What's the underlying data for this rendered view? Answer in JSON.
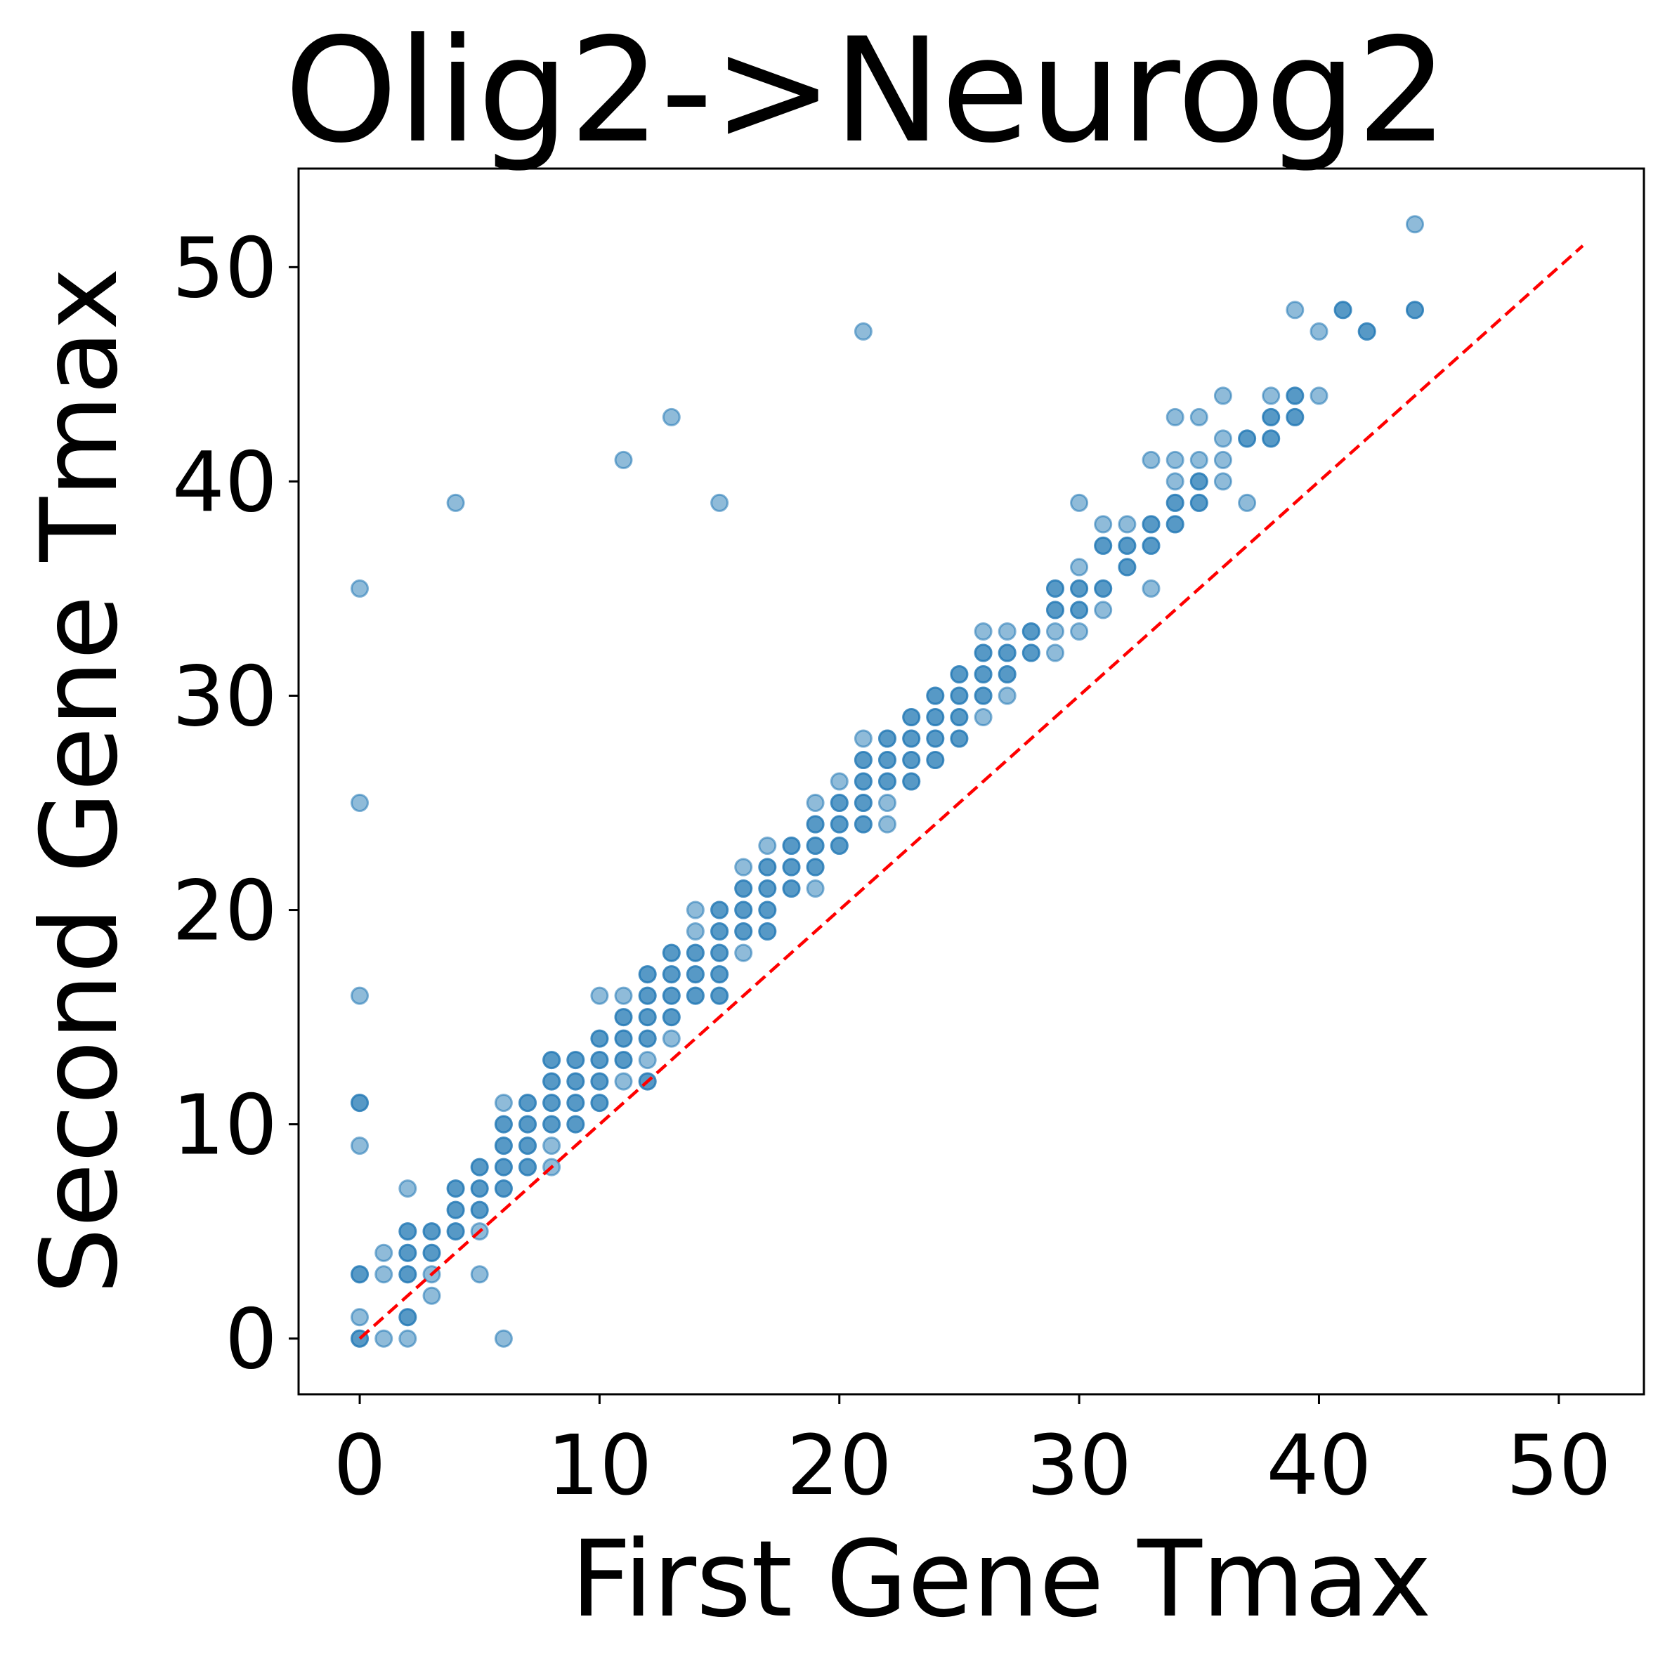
{
  "chart_data": {
    "type": "scatter",
    "title": "Olig2->Neurog2",
    "xlabel": "First Gene Tmax",
    "ylabel": "Second Gene Tmax",
    "xlim": [
      -2.55,
      53.55
    ],
    "ylim": [
      -2.6,
      54.6
    ],
    "xticks": [
      0,
      10,
      20,
      30,
      40,
      50
    ],
    "yticks": [
      0,
      10,
      20,
      30,
      40,
      50
    ],
    "grid": false,
    "legend": "none",
    "point_color": "#1f77b4",
    "point_alpha": 0.5,
    "reference_line": {
      "x": [
        0,
        51
      ],
      "y": [
        0,
        51
      ],
      "color": "#ff0000",
      "style": "dashed"
    },
    "points": [
      [
        0,
        0
      ],
      [
        0,
        0
      ],
      [
        0,
        1
      ],
      [
        0,
        3
      ],
      [
        0,
        3
      ],
      [
        0,
        9
      ],
      [
        0,
        11
      ],
      [
        0,
        11
      ],
      [
        0,
        16
      ],
      [
        0,
        25
      ],
      [
        0,
        35
      ],
      [
        1,
        0
      ],
      [
        1,
        3
      ],
      [
        1,
        4
      ],
      [
        2,
        0
      ],
      [
        2,
        1
      ],
      [
        2,
        1
      ],
      [
        2,
        3
      ],
      [
        2,
        3
      ],
      [
        2,
        4
      ],
      [
        2,
        4
      ],
      [
        2,
        5
      ],
      [
        2,
        5
      ],
      [
        2,
        7
      ],
      [
        3,
        2
      ],
      [
        3,
        3
      ],
      [
        3,
        4
      ],
      [
        3,
        4
      ],
      [
        3,
        5
      ],
      [
        3,
        5
      ],
      [
        4,
        5
      ],
      [
        4,
        5
      ],
      [
        4,
        6
      ],
      [
        4,
        6
      ],
      [
        4,
        7
      ],
      [
        4,
        7
      ],
      [
        4,
        39
      ],
      [
        5,
        3
      ],
      [
        5,
        5
      ],
      [
        5,
        6
      ],
      [
        5,
        6
      ],
      [
        5,
        7
      ],
      [
        5,
        7
      ],
      [
        5,
        8
      ],
      [
        5,
        8
      ],
      [
        6,
        0
      ],
      [
        6,
        7
      ],
      [
        6,
        7
      ],
      [
        6,
        8
      ],
      [
        6,
        8
      ],
      [
        6,
        9
      ],
      [
        6,
        9
      ],
      [
        6,
        10
      ],
      [
        6,
        10
      ],
      [
        6,
        11
      ],
      [
        7,
        8
      ],
      [
        7,
        8
      ],
      [
        7,
        9
      ],
      [
        7,
        9
      ],
      [
        7,
        10
      ],
      [
        7,
        10
      ],
      [
        7,
        11
      ],
      [
        7,
        11
      ],
      [
        8,
        8
      ],
      [
        8,
        9
      ],
      [
        8,
        10
      ],
      [
        8,
        10
      ],
      [
        8,
        11
      ],
      [
        8,
        11
      ],
      [
        8,
        12
      ],
      [
        8,
        12
      ],
      [
        8,
        13
      ],
      [
        8,
        13
      ],
      [
        9,
        10
      ],
      [
        9,
        10
      ],
      [
        9,
        11
      ],
      [
        9,
        11
      ],
      [
        9,
        12
      ],
      [
        9,
        12
      ],
      [
        9,
        13
      ],
      [
        9,
        13
      ],
      [
        10,
        11
      ],
      [
        10,
        11
      ],
      [
        10,
        12
      ],
      [
        10,
        12
      ],
      [
        10,
        13
      ],
      [
        10,
        13
      ],
      [
        10,
        14
      ],
      [
        10,
        14
      ],
      [
        10,
        16
      ],
      [
        11,
        12
      ],
      [
        11,
        13
      ],
      [
        11,
        13
      ],
      [
        11,
        14
      ],
      [
        11,
        14
      ],
      [
        11,
        15
      ],
      [
        11,
        15
      ],
      [
        11,
        16
      ],
      [
        11,
        41
      ],
      [
        12,
        12
      ],
      [
        12,
        12
      ],
      [
        12,
        13
      ],
      [
        12,
        14
      ],
      [
        12,
        14
      ],
      [
        12,
        15
      ],
      [
        12,
        15
      ],
      [
        12,
        16
      ],
      [
        12,
        16
      ],
      [
        12,
        17
      ],
      [
        12,
        17
      ],
      [
        13,
        14
      ],
      [
        13,
        15
      ],
      [
        13,
        15
      ],
      [
        13,
        16
      ],
      [
        13,
        16
      ],
      [
        13,
        17
      ],
      [
        13,
        17
      ],
      [
        13,
        18
      ],
      [
        13,
        18
      ],
      [
        13,
        43
      ],
      [
        14,
        16
      ],
      [
        14,
        16
      ],
      [
        14,
        17
      ],
      [
        14,
        17
      ],
      [
        14,
        18
      ],
      [
        14,
        18
      ],
      [
        14,
        19
      ],
      [
        14,
        20
      ],
      [
        15,
        16
      ],
      [
        15,
        16
      ],
      [
        15,
        17
      ],
      [
        15,
        17
      ],
      [
        15,
        18
      ],
      [
        15,
        18
      ],
      [
        15,
        19
      ],
      [
        15,
        19
      ],
      [
        15,
        20
      ],
      [
        15,
        20
      ],
      [
        15,
        39
      ],
      [
        16,
        18
      ],
      [
        16,
        19
      ],
      [
        16,
        19
      ],
      [
        16,
        20
      ],
      [
        16,
        20
      ],
      [
        16,
        21
      ],
      [
        16,
        21
      ],
      [
        16,
        22
      ],
      [
        17,
        19
      ],
      [
        17,
        19
      ],
      [
        17,
        20
      ],
      [
        17,
        20
      ],
      [
        17,
        21
      ],
      [
        17,
        21
      ],
      [
        17,
        22
      ],
      [
        17,
        22
      ],
      [
        17,
        23
      ],
      [
        18,
        21
      ],
      [
        18,
        21
      ],
      [
        18,
        22
      ],
      [
        18,
        22
      ],
      [
        18,
        23
      ],
      [
        18,
        23
      ],
      [
        19,
        21
      ],
      [
        19,
        22
      ],
      [
        19,
        22
      ],
      [
        19,
        23
      ],
      [
        19,
        23
      ],
      [
        19,
        24
      ],
      [
        19,
        24
      ],
      [
        19,
        25
      ],
      [
        20,
        23
      ],
      [
        20,
        23
      ],
      [
        20,
        24
      ],
      [
        20,
        24
      ],
      [
        20,
        25
      ],
      [
        20,
        25
      ],
      [
        20,
        26
      ],
      [
        21,
        24
      ],
      [
        21,
        24
      ],
      [
        21,
        25
      ],
      [
        21,
        25
      ],
      [
        21,
        26
      ],
      [
        21,
        26
      ],
      [
        21,
        27
      ],
      [
        21,
        27
      ],
      [
        21,
        28
      ],
      [
        21,
        47
      ],
      [
        22,
        24
      ],
      [
        22,
        25
      ],
      [
        22,
        26
      ],
      [
        22,
        26
      ],
      [
        22,
        27
      ],
      [
        22,
        27
      ],
      [
        22,
        28
      ],
      [
        22,
        28
      ],
      [
        23,
        26
      ],
      [
        23,
        26
      ],
      [
        23,
        27
      ],
      [
        23,
        27
      ],
      [
        23,
        28
      ],
      [
        23,
        28
      ],
      [
        23,
        29
      ],
      [
        23,
        29
      ],
      [
        24,
        27
      ],
      [
        24,
        27
      ],
      [
        24,
        28
      ],
      [
        24,
        28
      ],
      [
        24,
        29
      ],
      [
        24,
        29
      ],
      [
        24,
        30
      ],
      [
        24,
        30
      ],
      [
        25,
        28
      ],
      [
        25,
        28
      ],
      [
        25,
        29
      ],
      [
        25,
        29
      ],
      [
        25,
        30
      ],
      [
        25,
        30
      ],
      [
        25,
        31
      ],
      [
        25,
        31
      ],
      [
        26,
        29
      ],
      [
        26,
        30
      ],
      [
        26,
        30
      ],
      [
        26,
        31
      ],
      [
        26,
        31
      ],
      [
        26,
        32
      ],
      [
        26,
        32
      ],
      [
        26,
        33
      ],
      [
        27,
        30
      ],
      [
        27,
        31
      ],
      [
        27,
        31
      ],
      [
        27,
        32
      ],
      [
        27,
        32
      ],
      [
        27,
        33
      ],
      [
        28,
        32
      ],
      [
        28,
        32
      ],
      [
        28,
        33
      ],
      [
        28,
        33
      ],
      [
        29,
        32
      ],
      [
        29,
        33
      ],
      [
        29,
        34
      ],
      [
        29,
        34
      ],
      [
        29,
        35
      ],
      [
        29,
        35
      ],
      [
        30,
        33
      ],
      [
        30,
        34
      ],
      [
        30,
        34
      ],
      [
        30,
        35
      ],
      [
        30,
        35
      ],
      [
        30,
        36
      ],
      [
        30,
        39
      ],
      [
        31,
        34
      ],
      [
        31,
        35
      ],
      [
        31,
        35
      ],
      [
        31,
        37
      ],
      [
        31,
        37
      ],
      [
        31,
        38
      ],
      [
        32,
        36
      ],
      [
        32,
        36
      ],
      [
        32,
        37
      ],
      [
        32,
        37
      ],
      [
        32,
        38
      ],
      [
        33,
        35
      ],
      [
        33,
        37
      ],
      [
        33,
        37
      ],
      [
        33,
        38
      ],
      [
        33,
        38
      ],
      [
        33,
        41
      ],
      [
        34,
        38
      ],
      [
        34,
        38
      ],
      [
        34,
        39
      ],
      [
        34,
        39
      ],
      [
        34,
        40
      ],
      [
        34,
        41
      ],
      [
        34,
        43
      ],
      [
        35,
        39
      ],
      [
        35,
        39
      ],
      [
        35,
        40
      ],
      [
        35,
        40
      ],
      [
        35,
        41
      ],
      [
        35,
        43
      ],
      [
        36,
        40
      ],
      [
        36,
        41
      ],
      [
        36,
        42
      ],
      [
        36,
        44
      ],
      [
        37,
        39
      ],
      [
        37,
        42
      ],
      [
        37,
        42
      ],
      [
        38,
        42
      ],
      [
        38,
        42
      ],
      [
        38,
        43
      ],
      [
        38,
        43
      ],
      [
        38,
        44
      ],
      [
        39,
        43
      ],
      [
        39,
        43
      ],
      [
        39,
        44
      ],
      [
        39,
        44
      ],
      [
        39,
        48
      ],
      [
        40,
        44
      ],
      [
        40,
        47
      ],
      [
        41,
        48
      ],
      [
        41,
        48
      ],
      [
        42,
        47
      ],
      [
        42,
        47
      ],
      [
        44,
        48
      ],
      [
        44,
        48
      ],
      [
        44,
        52
      ]
    ]
  }
}
